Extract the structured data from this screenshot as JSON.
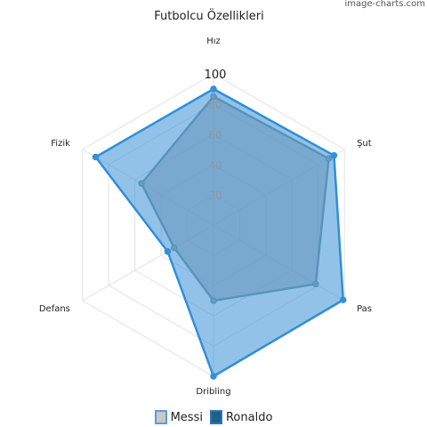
{
  "watermark": "image-charts.com",
  "chart_data": {
    "type": "radar",
    "title": "Futbolcu Özellikleri",
    "categories": [
      "Hız",
      "Şut",
      "Pas",
      "Dribling",
      "Defans",
      "Fizik"
    ],
    "rmax": 100,
    "ticks": [
      20,
      40,
      60,
      80,
      100
    ],
    "grid": true,
    "legend_position": "bottom",
    "series": [
      {
        "name": "Messi",
        "values": [
          85,
          88,
          78,
          50,
          30,
          55
        ],
        "stroke": "#7a9a9a",
        "fill": "#a9a9a9",
        "fill_opacity": 0.65
      },
      {
        "name": "Ronaldo",
        "values": [
          90,
          92,
          99,
          100,
          35,
          90
        ],
        "stroke": "#2f8fd8",
        "fill": "#3a8fd6",
        "fill_opacity": 0.55
      }
    ],
    "legend_styles": [
      {
        "name": "Messi",
        "border": "#5b9bd5",
        "fill": "#c8c8c8"
      },
      {
        "name": "Ronaldo",
        "border": "#2e75b6",
        "fill": "#1f5f8b"
      }
    ]
  }
}
